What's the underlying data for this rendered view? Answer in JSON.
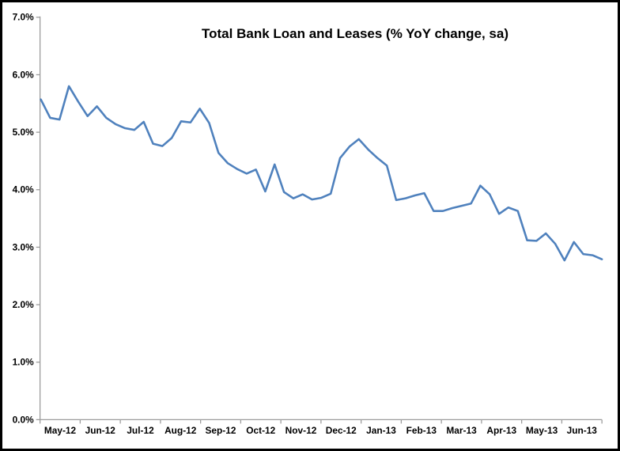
{
  "frame": {
    "background_color": "#ffffff",
    "border_color": "#000000"
  },
  "chart_data": {
    "type": "line",
    "title": "Total Bank Loan and Leases (% YoY change, sa)",
    "x_tick_labels": [
      "May-12",
      "Jun-12",
      "Jul-12",
      "Aug-12",
      "Sep-12",
      "Oct-12",
      "Nov-12",
      "Dec-12",
      "Jan-13",
      "Feb-13",
      "Mar-13",
      "Apr-13",
      "May-13",
      "Jun-13"
    ],
    "y_tick_labels": [
      "0.0%",
      "1.0%",
      "2.0%",
      "3.0%",
      "4.0%",
      "5.0%",
      "6.0%",
      "7.0%"
    ],
    "ylim": [
      0,
      7
    ],
    "y_tick_step": 1,
    "y_unit": "percent YoY change, seasonally adjusted",
    "x_frequency": "weekly",
    "grid": false,
    "legend": "none",
    "line_color": "#4F81BD",
    "axis_color": "#9c9c9c",
    "text_color": "#000000",
    "values": [
      5.57,
      5.25,
      5.22,
      5.8,
      5.53,
      5.28,
      5.45,
      5.25,
      5.14,
      5.07,
      5.04,
      5.18,
      4.8,
      4.76,
      4.9,
      5.19,
      5.17,
      5.41,
      5.16,
      4.64,
      4.46,
      4.36,
      4.28,
      4.35,
      3.97,
      4.44,
      3.96,
      3.85,
      3.92,
      3.83,
      3.86,
      3.93,
      4.55,
      4.75,
      4.88,
      4.7,
      4.55,
      4.42,
      3.82,
      3.85,
      3.9,
      3.94,
      3.63,
      3.63,
      3.68,
      3.72,
      3.76,
      4.07,
      3.92,
      3.58,
      3.69,
      3.63,
      3.12,
      3.11,
      3.24,
      3.06,
      2.77,
      3.09,
      2.88,
      2.86,
      2.79
    ]
  }
}
